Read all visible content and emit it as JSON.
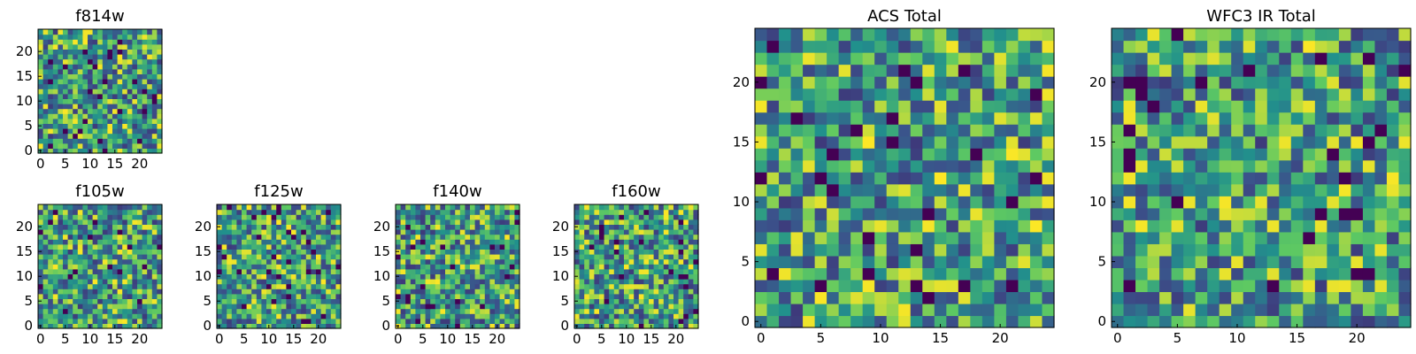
{
  "chart_data": [
    {
      "type": "heatmap",
      "title": "f814w",
      "grid_size": 25,
      "colormap": "viridis",
      "x_ticks": [
        "0",
        "5",
        "10",
        "15",
        "20"
      ],
      "y_ticks": [
        "0",
        "5",
        "10",
        "15",
        "20"
      ],
      "seed": 814
    },
    {
      "type": "heatmap",
      "title": "f105w",
      "grid_size": 25,
      "colormap": "viridis",
      "x_ticks": [
        "0",
        "5",
        "10",
        "15",
        "20"
      ],
      "y_ticks": [
        "0",
        "5",
        "10",
        "15",
        "20"
      ],
      "seed": 105
    },
    {
      "type": "heatmap",
      "title": "f125w",
      "grid_size": 25,
      "colormap": "viridis",
      "x_ticks": [
        "0",
        "5",
        "10",
        "15",
        "20"
      ],
      "y_ticks": [
        "0",
        "5",
        "10",
        "15",
        "20"
      ],
      "seed": 125
    },
    {
      "type": "heatmap",
      "title": "f140w",
      "grid_size": 25,
      "colormap": "viridis",
      "x_ticks": [
        "0",
        "5",
        "10",
        "15",
        "20"
      ],
      "y_ticks": [
        "0",
        "5",
        "10",
        "15",
        "20"
      ],
      "seed": 140
    },
    {
      "type": "heatmap",
      "title": "f160w",
      "grid_size": 25,
      "colormap": "viridis",
      "x_ticks": [
        "0",
        "5",
        "10",
        "15",
        "20"
      ],
      "y_ticks": [
        "0",
        "5",
        "10",
        "15",
        "20"
      ],
      "seed": 160
    },
    {
      "type": "heatmap",
      "title": "ACS Total",
      "grid_size": 25,
      "colormap": "viridis",
      "x_ticks": [
        "0",
        "5",
        "10",
        "15",
        "20"
      ],
      "y_ticks": [
        "0",
        "5",
        "10",
        "15",
        "20"
      ],
      "seed": 7
    },
    {
      "type": "heatmap",
      "title": "WFC3 IR Total",
      "grid_size": 25,
      "colormap": "viridis",
      "x_ticks": [
        "0",
        "5",
        "10",
        "15",
        "20"
      ],
      "y_ticks": [
        "0",
        "5",
        "10",
        "15",
        "20"
      ],
      "seed": 33
    }
  ],
  "palette": {
    "dark_purple": "#440154",
    "indigo": "#3b528b",
    "teal": "#21918c",
    "green": "#5ec962",
    "yellow": "#fde725"
  }
}
